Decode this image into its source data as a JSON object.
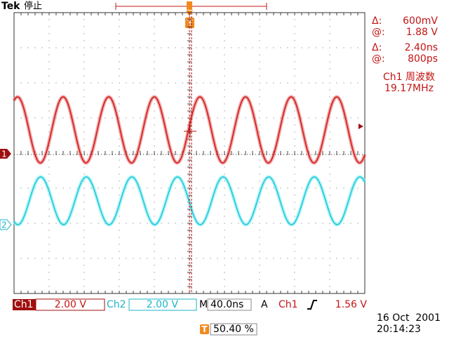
{
  "header": {
    "brand": "Tek",
    "status": "停止"
  },
  "trigger_marker": "T",
  "channel_markers": [
    "1",
    "2"
  ],
  "cursor_readout": [
    {
      "symbol": "Δ:",
      "value": "600mV"
    },
    {
      "symbol": "@:",
      "value": "1.88 V"
    },
    {
      "symbol": "Δ:",
      "value": "2.40ns"
    },
    {
      "symbol": "@:",
      "value": "800ps"
    }
  ],
  "measurement": {
    "label": "Ch1 周波数",
    "value": "19.17MHz"
  },
  "status_bar": {
    "ch1_label": "Ch1",
    "ch1_scale": "2.00 V",
    "ch2_label": "Ch2",
    "ch2_scale": "2.00 V",
    "timebase_label": "M",
    "timebase": "40.0ns",
    "trigger_label": "A",
    "trigger_source": "Ch1",
    "trigger_level": "1.56 V"
  },
  "date": "16 Oct  2001",
  "time": "20:14:23",
  "position": {
    "marker": "T",
    "value": "50.40 %"
  }
}
